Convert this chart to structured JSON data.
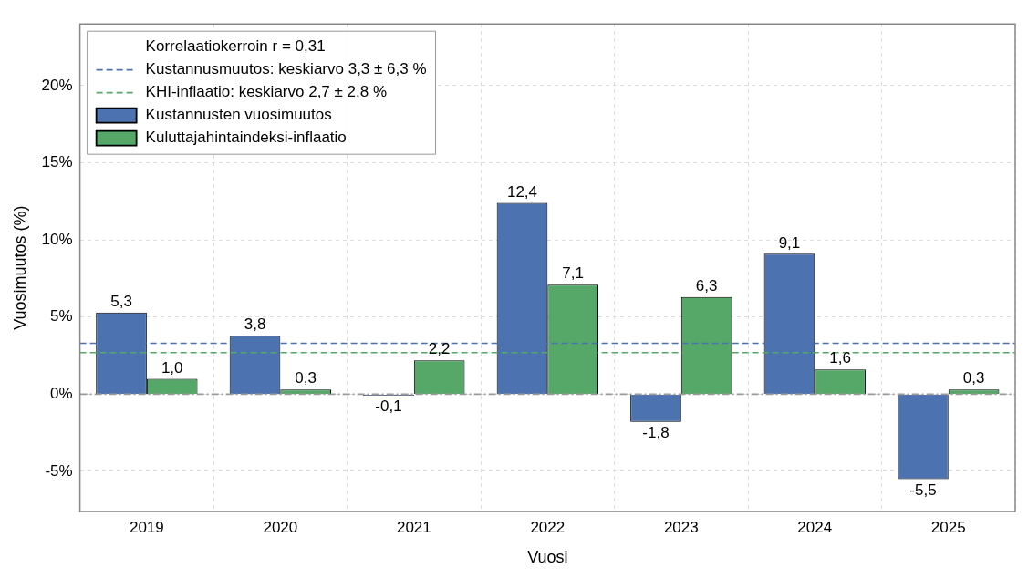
{
  "chart_data": {
    "type": "bar",
    "xlabel": "Vuosi",
    "ylabel": "Vuosimuutos (%)",
    "categories": [
      "2019",
      "2020",
      "2021",
      "2022",
      "2023",
      "2024",
      "2025"
    ],
    "series": [
      {
        "name": "Kustannusten vuosimuutos",
        "color": "#4c72b0",
        "values": [
          5.3,
          3.8,
          -0.1,
          12.4,
          -1.8,
          9.1,
          -5.5
        ],
        "value_labels": [
          "5,3",
          "3,8",
          "-0,1",
          "12,4",
          "-1,8",
          "9,1",
          "-5,5"
        ]
      },
      {
        "name": "Kuluttajahintaindeksi-inflaatio",
        "color": "#55a868",
        "values": [
          1.0,
          0.3,
          2.2,
          7.1,
          6.3,
          1.6,
          0.3
        ],
        "value_labels": [
          "1,0",
          "0,3",
          "2,2",
          "7,1",
          "6,3",
          "1,6",
          "0,3"
        ]
      }
    ],
    "ylim": [
      -7.6,
      24
    ],
    "yticks": [
      {
        "value": -5,
        "label": "-5%"
      },
      {
        "value": 0,
        "label": "0%"
      },
      {
        "value": 5,
        "label": "5%"
      },
      {
        "value": 10,
        "label": "10%"
      },
      {
        "value": 15,
        "label": "15%"
      },
      {
        "value": 20,
        "label": "20%"
      }
    ],
    "ref_lines": [
      {
        "axis": "y",
        "value": 3.3,
        "label": "Kustannusmuutos: keskiarvo 3,3 ± 6,3 %",
        "color": "#4c72b0",
        "line_style": "dashed"
      },
      {
        "axis": "y",
        "value": 2.7,
        "label": "KHI-inflaatio: keskiarvo 2,7 ± 2,8 %",
        "color": "#55a868",
        "line_style": "dashed"
      },
      {
        "axis": "y",
        "value": 0,
        "color": "#999999",
        "line_style": "dashdot"
      }
    ],
    "annotations": [
      "Korrelaatiokerroin r = 0,31"
    ],
    "grid": true,
    "legend": "top left"
  }
}
